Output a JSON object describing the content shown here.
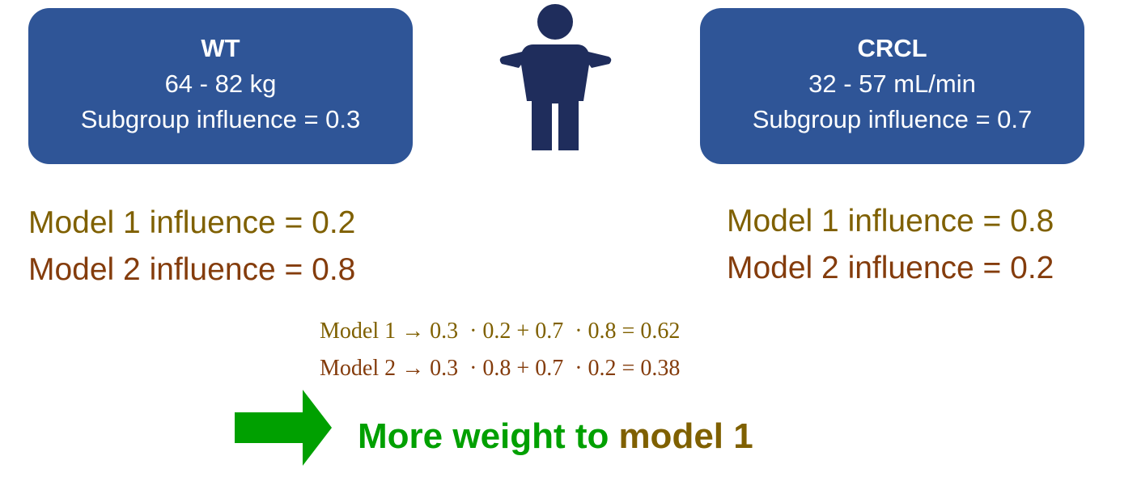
{
  "boxes": [
    {
      "title": "WT",
      "range": "64 - 82 kg",
      "influence": "Subgroup influence = 0.3"
    },
    {
      "title": "CRCL",
      "range": "32 - 57 mL/min",
      "influence": "Subgroup influence = 0.7"
    }
  ],
  "model_influences": [
    [
      "Model 1 influence = 0.2",
      "Model 2 influence = 0.8"
    ],
    [
      "Model 1 influence = 0.8",
      "Model 2 influence = 0.2"
    ]
  ],
  "equations": [
    "Model 1 → 0.3  · 0.2 + 0.7  · 0.8 = 0.62",
    "Model 2 → 0.3  · 0.8 + 0.7  · 0.2 = 0.38"
  ],
  "conclusion": [
    "More weight to",
    "model 1"
  ]
}
